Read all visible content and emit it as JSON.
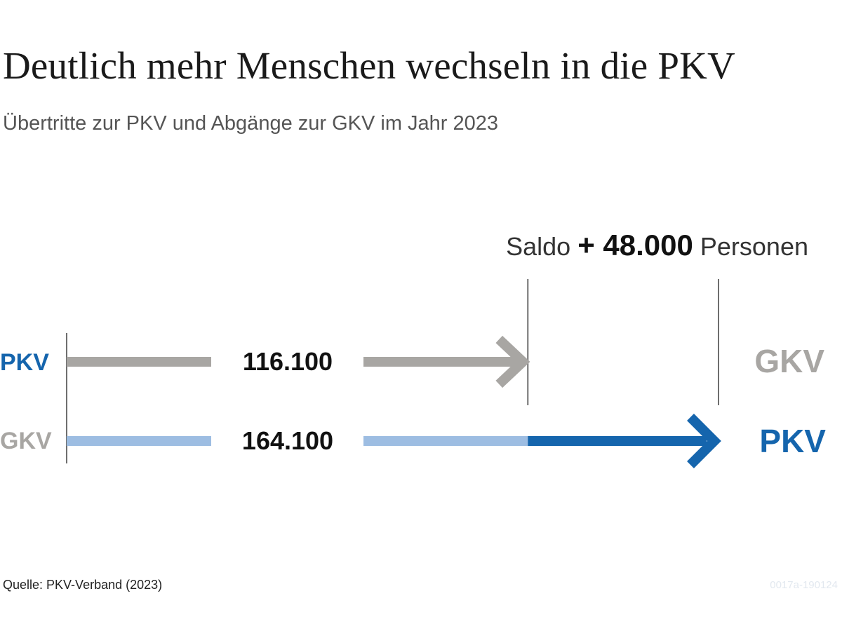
{
  "title": "Deutlich mehr Menschen wechseln in die PKV",
  "subtitle": "Übertritte zur PKV und Abgänge zur GKV im Jahr 2023",
  "saldo": {
    "prefix": "Saldo",
    "value": "+ 48.000",
    "suffix": "Personen"
  },
  "source": "Quelle: PKV-Verband (2023)",
  "code": "0017a-190124",
  "colors": {
    "pkv_blue": "#1565ad",
    "gkv_grey": "#a8a6a3",
    "light_blue": "#9dbde2",
    "axis_line": "#6e6e6e"
  },
  "chart_data": {
    "type": "bar",
    "rows": [
      {
        "from": "PKV",
        "to": "GKV",
        "value": 116100,
        "value_label": "116.100"
      },
      {
        "from": "GKV",
        "to": "PKV",
        "value": 164100,
        "value_label": "164.100"
      }
    ],
    "net": {
      "value": 48000,
      "label": "+ 48.000",
      "direction": "to PKV"
    }
  }
}
